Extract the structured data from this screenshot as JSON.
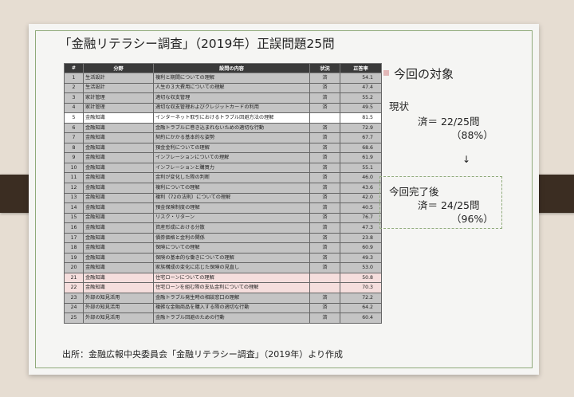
{
  "title": "「金融リテラシー調査」（2019年）正誤問題25問",
  "table": {
    "headers": [
      "#",
      "分野",
      "設問の内容",
      "状況",
      "正答率"
    ],
    "rows": [
      {
        "num": "1",
        "field": "生活設計",
        "content": "複利と期間についての理解",
        "status": "済",
        "rate": "54.1",
        "style": "gray"
      },
      {
        "num": "2",
        "field": "生活設計",
        "content": "人生の３大費用についての理解",
        "status": "済",
        "rate": "47.4",
        "style": "gray"
      },
      {
        "num": "3",
        "field": "家計管理",
        "content": "適切な収支管理",
        "status": "済",
        "rate": "55.2",
        "style": "gray"
      },
      {
        "num": "4",
        "field": "家計管理",
        "content": "適切な収支管理およびクレジットカードの利用",
        "status": "済",
        "rate": "49.5",
        "style": "gray"
      },
      {
        "num": "5",
        "field": "金融知識",
        "content": "インターネット取引におけるトラブル回避方法の理解",
        "status": "",
        "rate": "81.5",
        "style": "white"
      },
      {
        "num": "6",
        "field": "金融知識",
        "content": "金融トラブルに巻き込まれないための適切な行動",
        "status": "済",
        "rate": "72.9",
        "style": "gray"
      },
      {
        "num": "7",
        "field": "金融知識",
        "content": "契約にかかる基本的な姿勢",
        "status": "済",
        "rate": "67.7",
        "style": "gray"
      },
      {
        "num": "8",
        "field": "金融知識",
        "content": "預金金利についての理解",
        "status": "済",
        "rate": "68.6",
        "style": "gray"
      },
      {
        "num": "9",
        "field": "金融知識",
        "content": "インフレーションについての理解",
        "status": "済",
        "rate": "61.9",
        "style": "gray"
      },
      {
        "num": "10",
        "field": "金融知識",
        "content": "インフレーションと購買力",
        "status": "済",
        "rate": "55.1",
        "style": "gray"
      },
      {
        "num": "11",
        "field": "金融知識",
        "content": "金利が変化した際の判断",
        "status": "済",
        "rate": "46.0",
        "style": "gray"
      },
      {
        "num": "12",
        "field": "金融知識",
        "content": "複利についての理解",
        "status": "済",
        "rate": "43.6",
        "style": "gray"
      },
      {
        "num": "13",
        "field": "金融知識",
        "content": "複利（72の法則）についての理解",
        "status": "済",
        "rate": "42.0",
        "style": "gray"
      },
      {
        "num": "14",
        "field": "金融知識",
        "content": "預金保険制度の理解",
        "status": "済",
        "rate": "40.5",
        "style": "gray"
      },
      {
        "num": "15",
        "field": "金融知識",
        "content": "リスク・リターン",
        "status": "済",
        "rate": "76.7",
        "style": "gray"
      },
      {
        "num": "16",
        "field": "金融知識",
        "content": "資産形成における分散",
        "status": "済",
        "rate": "47.3",
        "style": "gray"
      },
      {
        "num": "17",
        "field": "金融知識",
        "content": "債券価格と金利の関係",
        "status": "済",
        "rate": "23.8",
        "style": "gray"
      },
      {
        "num": "18",
        "field": "金融知識",
        "content": "保険についての理解",
        "status": "済",
        "rate": "60.9",
        "style": "gray"
      },
      {
        "num": "19",
        "field": "金融知識",
        "content": "保険の基本的な働きについての理解",
        "status": "済",
        "rate": "49.3",
        "style": "gray"
      },
      {
        "num": "20",
        "field": "金融知識",
        "content": "家族構成の変化に応じた保険の見直し",
        "status": "済",
        "rate": "53.0",
        "style": "gray"
      },
      {
        "num": "21",
        "field": "金融知識",
        "content": "住宅ローンについての理解",
        "status": "",
        "rate": "50.8",
        "style": "pink"
      },
      {
        "num": "22",
        "field": "金融知識",
        "content": "住宅ローンを組む際の支払金利についての理解",
        "status": "",
        "rate": "70.3",
        "style": "pink"
      },
      {
        "num": "23",
        "field": "外部の知見活用",
        "content": "金融トラブル発生時の相談窓口の理解",
        "status": "済",
        "rate": "72.2",
        "style": "gray"
      },
      {
        "num": "24",
        "field": "外部の知見活用",
        "content": "複雑な金融商品を購入する際の適切な行動",
        "status": "済",
        "rate": "64.2",
        "style": "gray"
      },
      {
        "num": "25",
        "field": "外部の知見活用",
        "content": "金融トラブル回避のための行動",
        "status": "済",
        "rate": "60.4",
        "style": "gray"
      }
    ]
  },
  "source": "出所：金融広報中央委員会「金融リテラシー調査」（2019年）より作成",
  "side": {
    "heading": "今回の対象",
    "current_label": "現状",
    "current_value": "済＝ 22/25問",
    "current_pct": "（88%）",
    "arrow": "↓",
    "goal_label": "今回完了後",
    "goal_value": "済＝ 24/25問",
    "goal_pct": "（96%）"
  },
  "colors": {
    "header_bg": "#3a3a3a",
    "row_gray": "#c4c4c4",
    "row_pink": "#f5dedd",
    "accent_green": "#8faa7a",
    "bullet_pink": "#e2b8b8"
  }
}
